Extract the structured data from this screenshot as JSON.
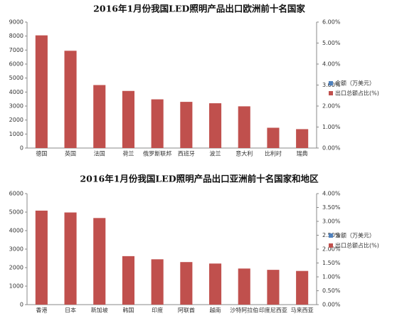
{
  "chart_data": [
    {
      "type": "bar",
      "title": "2016年1月份我国LED照明产品出口欧洲前十名国家",
      "categories": [
        "德国",
        "英国",
        "法国",
        "荷兰",
        "俄罗斯联邦",
        "西班牙",
        "波兰",
        "意大利",
        "比利时",
        "瑞典"
      ],
      "values": [
        8050,
        6950,
        4500,
        4080,
        3480,
        3300,
        3200,
        2980,
        1450,
        1350
      ],
      "color": "#c0504d",
      "legend": [
        {
          "name": "金额（万美元）",
          "color": "#4f81bd"
        },
        {
          "name": "出口总额占比(%)",
          "color": "#c0504d"
        }
      ],
      "ylim": [
        0,
        9000
      ],
      "yticks": [
        0,
        1000,
        2000,
        3000,
        4000,
        5000,
        6000,
        7000,
        8000,
        9000
      ],
      "y2lim": [
        0,
        6
      ],
      "y2ticks": [
        {
          "value": 0,
          "label": "0.00%"
        },
        {
          "value": 1,
          "label": "1.00%"
        },
        {
          "value": 2,
          "label": "2.00%"
        },
        {
          "value": 3,
          "label": "3.00%"
        },
        {
          "value": 4,
          "label": "4.00%"
        },
        {
          "value": 5,
          "label": "5.00%"
        },
        {
          "value": 6,
          "label": "6.00%"
        }
      ]
    },
    {
      "type": "bar",
      "title": "2016年1月份我国LED照明产品出口亚洲前十名国家和地区",
      "categories": [
        "香港",
        "日本",
        "新加坡",
        "韩国",
        "印度",
        "阿联酋",
        "越南",
        "沙特阿拉伯",
        "印度尼西亚",
        "马来西亚"
      ],
      "values": [
        5080,
        4980,
        4680,
        2620,
        2450,
        2300,
        2220,
        1950,
        1880,
        1820
      ],
      "color": "#c0504d",
      "legend": [
        {
          "name": "金额（万美元）",
          "color": "#4f81bd"
        },
        {
          "name": "出口总额占比(%)",
          "color": "#c0504d"
        }
      ],
      "ylim": [
        0,
        6000
      ],
      "yticks": [
        0,
        1000,
        2000,
        3000,
        4000,
        5000,
        6000
      ],
      "y2lim": [
        0,
        4
      ],
      "y2ticks": [
        {
          "value": 0,
          "label": "0.00%"
        },
        {
          "value": 0.5,
          "label": "0.50%"
        },
        {
          "value": 1,
          "label": "1.00%"
        },
        {
          "value": 1.5,
          "label": "1.50%"
        },
        {
          "value": 2,
          "label": "2.00%"
        },
        {
          "value": 2.5,
          "label": "2.50%"
        },
        {
          "value": 3,
          "label": "3.00%"
        },
        {
          "value": 3.5,
          "label": "3.50%"
        },
        {
          "value": 4,
          "label": "4.00%"
        }
      ]
    }
  ]
}
